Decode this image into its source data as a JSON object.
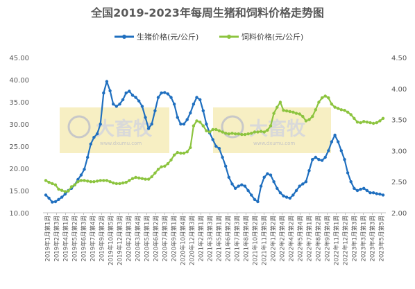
{
  "chart_data": {
    "type": "line",
    "title": "全国2019-2023年每周生猪和饲料价格走势图",
    "watermark": {
      "text": "大畜牧",
      "url": "www.dxumu.com"
    },
    "y_left": {
      "ticks": [
        "10.00",
        "15.00",
        "20.00",
        "25.00",
        "30.00",
        "35.00",
        "40.00",
        "45.00"
      ],
      "range": [
        10,
        45
      ]
    },
    "y_right": {
      "ticks": [
        "2.00",
        "2.50",
        "3.00",
        "3.50",
        "4.00",
        "4.50"
      ],
      "range": [
        2.0,
        4.5
      ]
    },
    "x_tick_labels": [
      "2019年1月第1周",
      "2019年2月第3周",
      "2019年4月第1周",
      "2019年5月第2周",
      "2019年6月第3周",
      "2019年7月第4周",
      "2019年9月第2周",
      "2019年10月第5周",
      "2019年12月第3周",
      "2020年2月第3周",
      "2020年3月第4周",
      "2020年5月第1周",
      "2020年6月第2周",
      "2020年7月第3周",
      "2020年9月第1周",
      "2020年10月第4周",
      "2020年12月第3周",
      "2021年2月第1周",
      "2021年3月第3周",
      "2021年5月第1周",
      "2021年6月第2周",
      "2021年7月第3周",
      "2021年8月第4周",
      "2021年10月第2周",
      "2021年11月第5周",
      "2022年1月第2周",
      "2022年2月第4周",
      "2022年4月第2周",
      "2022年5月第4周",
      "2022年7月第1周",
      "2022年8月第2周",
      "2022年9月第4周",
      "2022年11月第1周",
      "2022年12月第2周",
      "2023年1月第3周",
      "2023年3月第1周",
      "2023年4月第3周",
      "2023年5月第5周"
    ],
    "series": [
      {
        "name": "生猪价格(元/公斤)",
        "axis": "left",
        "color": "#1f6fbf",
        "values": [
          14.0,
          13.3,
          12.4,
          12.5,
          13.0,
          13.5,
          14.2,
          15.0,
          15.5,
          16.3,
          17.5,
          18.5,
          19.8,
          22.5,
          25.5,
          27.0,
          27.8,
          30.0,
          37.0,
          39.6,
          37.5,
          34.5,
          34.0,
          34.5,
          35.5,
          37.0,
          37.4,
          36.5,
          36.0,
          35.2,
          34.0,
          31.5,
          29.0,
          30.0,
          33.0,
          36.0,
          37.0,
          37.1,
          36.8,
          36.0,
          34.5,
          31.5,
          30.0,
          30.0,
          31.0,
          32.5,
          34.5,
          36.0,
          35.5,
          33.0,
          30.0,
          28.0,
          26.5,
          25.0,
          24.5,
          22.5,
          20.5,
          18.0,
          16.5,
          15.5,
          16.0,
          16.3,
          16.0,
          15.0,
          14.0,
          13.0,
          12.5,
          16.0,
          18.0,
          18.8,
          18.5,
          17.0,
          15.5,
          14.5,
          13.8,
          13.5,
          13.3,
          14.0,
          15.0,
          16.0,
          16.5,
          17.0,
          19.5,
          22.0,
          22.5,
          22.0,
          21.8,
          22.5,
          24.0,
          26.0,
          27.5,
          26.0,
          24.0,
          22.0,
          19.0,
          17.0,
          15.5,
          15.0,
          15.3,
          15.5,
          15.0,
          14.5,
          14.5,
          14.3,
          14.2,
          14.0
        ]
      },
      {
        "name": "饲料价格(元/公斤)",
        "axis": "right",
        "color": "#8cc43f",
        "values": [
          2.52,
          2.49,
          2.47,
          2.45,
          2.38,
          2.36,
          2.34,
          2.35,
          2.42,
          2.45,
          2.5,
          2.52,
          2.52,
          2.51,
          2.5,
          2.5,
          2.51,
          2.52,
          2.52,
          2.52,
          2.5,
          2.48,
          2.47,
          2.47,
          2.48,
          2.49,
          2.52,
          2.55,
          2.57,
          2.56,
          2.55,
          2.54,
          2.54,
          2.58,
          2.64,
          2.7,
          2.74,
          2.75,
          2.79,
          2.85,
          2.93,
          2.97,
          2.96,
          2.96,
          2.98,
          3.05,
          3.4,
          3.48,
          3.46,
          3.4,
          3.32,
          3.3,
          3.34,
          3.34,
          3.32,
          3.3,
          3.28,
          3.27,
          3.28,
          3.27,
          3.27,
          3.26,
          3.26,
          3.27,
          3.28,
          3.3,
          3.3,
          3.31,
          3.3,
          3.33,
          3.4,
          3.6,
          3.7,
          3.78,
          3.65,
          3.64,
          3.63,
          3.62,
          3.6,
          3.59,
          3.55,
          3.48,
          3.5,
          3.55,
          3.66,
          3.78,
          3.85,
          3.88,
          3.85,
          3.75,
          3.7,
          3.68,
          3.66,
          3.65,
          3.62,
          3.58,
          3.52,
          3.46,
          3.45,
          3.47,
          3.46,
          3.45,
          3.44,
          3.45,
          3.48,
          3.52
        ]
      }
    ],
    "legend_position": "top",
    "grid": false
  }
}
